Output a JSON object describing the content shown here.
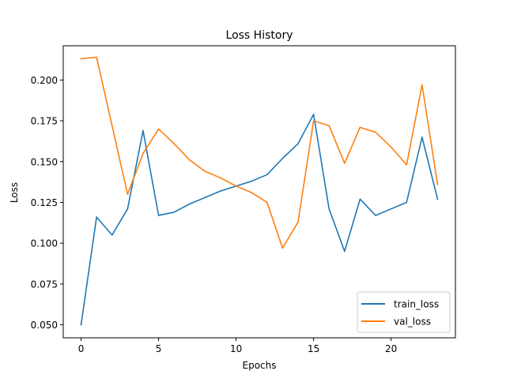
{
  "chart_data": {
    "type": "line",
    "title": "Loss History",
    "xlabel": "Epochs",
    "ylabel": "Loss",
    "xlim": [
      -1.15,
      24.15
    ],
    "ylim": [
      0.042,
      0.221
    ],
    "xticks": [
      0,
      5,
      10,
      15,
      20
    ],
    "yticks": [
      0.05,
      0.075,
      0.1,
      0.125,
      0.15,
      0.175,
      0.2
    ],
    "ytick_labels": [
      "0.050",
      "0.075",
      "0.100",
      "0.125",
      "0.150",
      "0.175",
      "0.200"
    ],
    "grid": false,
    "legend_position": "lower-right",
    "x": [
      0,
      1,
      2,
      3,
      4,
      5,
      6,
      7,
      8,
      9,
      10,
      11,
      12,
      13,
      14,
      15,
      16,
      17,
      18,
      19,
      20,
      21,
      22,
      23
    ],
    "series": [
      {
        "name": "train_loss",
        "color": "#1f77b4",
        "values": [
          0.05,
          0.116,
          0.105,
          0.121,
          0.169,
          0.117,
          0.119,
          0.124,
          0.128,
          0.132,
          0.135,
          0.138,
          0.142,
          0.152,
          0.161,
          0.179,
          0.121,
          0.095,
          0.127,
          0.117,
          0.121,
          0.125,
          0.165,
          0.127
        ]
      },
      {
        "name": "val_loss",
        "color": "#ff7f0e",
        "values": [
          0.213,
          0.214,
          0.172,
          0.13,
          0.155,
          0.17,
          0.161,
          0.151,
          0.144,
          0.14,
          0.135,
          0.131,
          0.125,
          0.097,
          0.113,
          0.175,
          0.172,
          0.149,
          0.171,
          0.168,
          0.159,
          0.148,
          0.197,
          0.136
        ]
      }
    ]
  }
}
